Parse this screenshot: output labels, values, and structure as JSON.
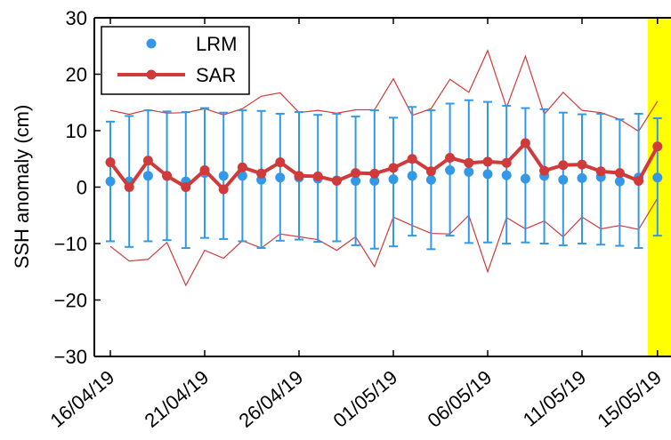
{
  "chart_data": {
    "type": "line",
    "title": "",
    "xlabel": "",
    "ylabel": "SSH anomaly (cm)",
    "ylim": [
      -30,
      30
    ],
    "xlim": [
      "2019-04-16",
      "2019-05-15"
    ],
    "yticks": [
      -30,
      -20,
      -10,
      0,
      10,
      20,
      30
    ],
    "ytick_labels": [
      "−30",
      "−20",
      "−10",
      "0",
      "10",
      "20",
      "30"
    ],
    "xticks": [
      "2019-04-16",
      "2019-04-21",
      "2019-04-26",
      "2019-05-01",
      "2019-05-06",
      "2019-05-11",
      "2019-05-15"
    ],
    "xtick_labels": [
      "16/04/19",
      "21/04/19",
      "26/04/19",
      "01/05/19",
      "06/05/19",
      "11/05/19",
      "15/05/19"
    ],
    "grid": false,
    "legend_position": "top-left",
    "highlight": {
      "from": "2019-05-15",
      "color": "#ffff00"
    },
    "x": [
      "2019-04-16",
      "2019-04-17",
      "2019-04-18",
      "2019-04-19",
      "2019-04-20",
      "2019-04-21",
      "2019-04-22",
      "2019-04-23",
      "2019-04-24",
      "2019-04-25",
      "2019-04-26",
      "2019-04-27",
      "2019-04-28",
      "2019-04-29",
      "2019-04-30",
      "2019-05-01",
      "2019-05-02",
      "2019-05-03",
      "2019-05-04",
      "2019-05-05",
      "2019-05-06",
      "2019-05-07",
      "2019-05-08",
      "2019-05-09",
      "2019-05-10",
      "2019-05-11",
      "2019-05-12",
      "2019-05-13",
      "2019-05-14",
      "2019-05-15"
    ],
    "series": [
      {
        "name": "LRM",
        "style": "points-with-errorbars",
        "color": "#3399e6",
        "values": [
          1.0,
          1.0,
          2.0,
          2.0,
          1.0,
          2.5,
          2.0,
          2.0,
          1.3,
          1.7,
          1.7,
          1.5,
          1.2,
          1.1,
          1.1,
          1.4,
          2.0,
          1.3,
          3.0,
          2.7,
          2.3,
          2.1,
          1.5,
          2.0,
          1.3,
          1.6,
          1.8,
          1.0,
          1.7,
          1.7
        ],
        "error_lower": [
          -9.6,
          -10.6,
          -9.6,
          -9.4,
          -10.8,
          -9.0,
          -9.2,
          -9.6,
          -10.8,
          -9.5,
          -9.3,
          -9.7,
          -9.6,
          -10.3,
          -10.9,
          -10.5,
          -8.6,
          -11.0,
          -8.6,
          -9.9,
          -9.8,
          -10.0,
          -9.8,
          -10.0,
          -10.3,
          -10.0,
          -10.2,
          -10.4,
          -10.8,
          -8.6
        ],
        "error_upper": [
          11.6,
          12.6,
          13.6,
          13.4,
          13.3,
          14.0,
          13.2,
          13.6,
          13.5,
          13.0,
          13.3,
          12.8,
          13.0,
          12.5,
          13.6,
          12.3,
          14.2,
          13.6,
          14.8,
          15.4,
          15.1,
          14.4,
          14.0,
          13.8,
          13.2,
          12.9,
          13.0,
          12.0,
          13.0,
          12.2
        ]
      },
      {
        "name": "SAR",
        "style": "line-with-markers",
        "color": "#d03a3a",
        "values": [
          4.4,
          0.0,
          4.7,
          2.0,
          0.0,
          3.0,
          -0.4,
          3.5,
          2.4,
          4.4,
          2.0,
          1.9,
          1.1,
          2.5,
          2.4,
          3.4,
          5.0,
          2.8,
          5.2,
          4.3,
          4.5,
          4.3,
          7.8,
          2.9,
          3.9,
          4.0,
          2.8,
          2.5,
          1.1,
          7.2
        ],
        "envelope_upper": [
          13.6,
          12.9,
          13.7,
          13.1,
          13.2,
          13.9,
          12.8,
          13.9,
          16.1,
          16.7,
          13.2,
          13.6,
          13.1,
          13.7,
          13.7,
          19.2,
          12.7,
          13.9,
          19.1,
          16.8,
          24.2,
          14.1,
          23.2,
          12.9,
          16.8,
          13.6,
          13.2,
          12.0,
          9.9,
          15.2
        ],
        "envelope_lower": [
          -10.5,
          -13.1,
          -12.8,
          -9.8,
          -17.4,
          -11.2,
          -12.6,
          -9.5,
          -10.8,
          -8.3,
          -8.8,
          -9.3,
          -11.2,
          -8.8,
          -14.1,
          -5.3,
          -6.8,
          -8.2,
          -8.3,
          -5.0,
          -15.0,
          -5.4,
          -7.4,
          -6.0,
          -8.8,
          -5.3,
          -7.4,
          -6.8,
          -7.5,
          -2.0
        ]
      }
    ]
  }
}
